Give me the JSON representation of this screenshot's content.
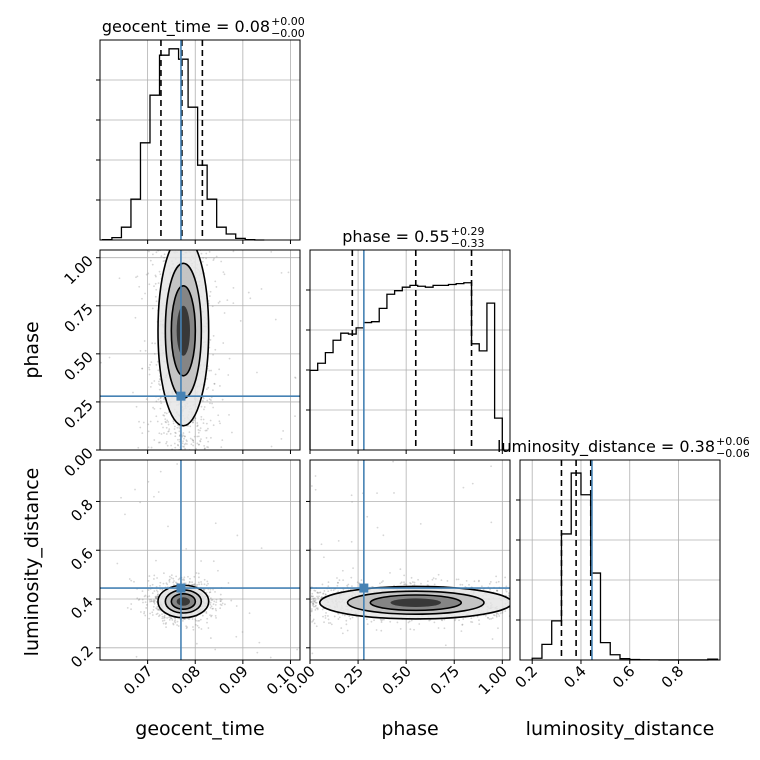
{
  "chart_data": {
    "type": "corner",
    "parameters": [
      "geocent_time",
      "phase",
      "luminosity_distance"
    ],
    "truth_color": "#4682b4",
    "hist_color": "#000000",
    "truths": {
      "geocent_time": 0.077,
      "phase": 0.28,
      "luminosity_distance": 0.445
    },
    "axes": {
      "geocent_time": {
        "range": [
          0.06,
          0.102
        ],
        "ticks": [
          0.07,
          0.08,
          0.09,
          0.1
        ],
        "tick_labels": [
          "0.07",
          "0.08",
          "0.09",
          "0.10"
        ]
      },
      "phase": {
        "range": [
          0.0,
          1.04
        ],
        "ticks": [
          0.0,
          0.25,
          0.5,
          0.75,
          1.0
        ],
        "tick_labels": [
          "0.00",
          "0.25",
          "0.50",
          "0.75",
          "1.00"
        ]
      },
      "luminosity_distance": {
        "range": [
          0.15,
          0.97
        ],
        "ticks": [
          0.2,
          0.4,
          0.6,
          0.8
        ],
        "tick_labels": [
          "0.2",
          "0.4",
          "0.6",
          "0.8"
        ]
      }
    },
    "titles": [
      {
        "param": "geocent_time",
        "text": "geocent_time = 0.08",
        "plus": "+0.00",
        "minus": "−0.00"
      },
      {
        "param": "phase",
        "text": "phase = 0.55",
        "plus": "+0.29",
        "minus": "−0.33"
      },
      {
        "param": "luminosity_distance",
        "text": "luminosity_distance = 0.38",
        "plus": "+0.06",
        "minus": "−0.06"
      }
    ],
    "histograms": [
      {
        "param": "geocent_time",
        "bin_edges": [
          0.0605,
          0.0625,
          0.0645,
          0.0665,
          0.0685,
          0.0705,
          0.0725,
          0.0745,
          0.0765,
          0.0785,
          0.0805,
          0.0825,
          0.0845,
          0.0865,
          0.0885,
          0.0905,
          0.0925,
          0.0945
        ],
        "counts": [
          0.1,
          0.6,
          3.2,
          10.2,
          24.3,
          36.2,
          46.2,
          47.8,
          45.2,
          33.2,
          18.7,
          10.2,
          3.2,
          1.5,
          0.4,
          0.1,
          0.0
        ],
        "ymax": 50,
        "quantiles": [
          0.0728,
          0.0772,
          0.0815
        ]
      },
      {
        "param": "phase",
        "bin_edges": [
          0.0,
          0.04,
          0.08,
          0.12,
          0.16,
          0.2,
          0.24,
          0.28,
          0.32,
          0.36,
          0.4,
          0.44,
          0.48,
          0.52,
          0.56,
          0.6,
          0.64,
          0.68,
          0.72,
          0.76,
          0.8,
          0.84,
          0.88,
          0.92,
          0.96,
          1.0
        ],
        "counts": [
          450,
          490,
          550,
          620,
          660,
          655,
          690,
          720,
          725,
          800,
          880,
          900,
          920,
          930,
          925,
          920,
          930,
          930,
          935,
          940,
          945,
          600,
          560,
          830,
          180
        ],
        "ymax": 1130,
        "quantiles": [
          0.22,
          0.55,
          0.84
        ]
      },
      {
        "param": "luminosity_distance",
        "bin_edges": [
          0.2,
          0.24,
          0.28,
          0.32,
          0.36,
          0.4,
          0.44,
          0.48,
          0.52,
          0.56,
          0.6,
          0.64,
          0.68,
          0.72,
          0.76,
          0.8,
          0.84,
          0.88,
          0.92,
          0.96
        ],
        "counts": [
          0.4,
          3.6,
          9.0,
          29.0,
          43.0,
          38.0,
          20.0,
          4.0,
          1.2,
          0.3,
          0.1,
          0.05,
          0.03,
          0.02,
          0.02,
          0.01,
          0.01,
          0.02,
          0.2
        ],
        "ymax": 46,
        "quantiles": [
          0.32,
          0.38,
          0.44
        ]
      }
    ],
    "joints": [
      {
        "x": "geocent_time",
        "y": "phase",
        "center": [
          0.0775,
          0.62
        ],
        "spread": [
          0.0028,
          0.26
        ]
      },
      {
        "x": "geocent_time",
        "y": "luminosity_distance",
        "center": [
          0.0775,
          0.39
        ],
        "spread": [
          0.0028,
          0.035
        ]
      },
      {
        "x": "phase",
        "y": "luminosity_distance",
        "center": [
          0.55,
          0.385
        ],
        "spread": [
          0.28,
          0.035
        ]
      }
    ]
  }
}
